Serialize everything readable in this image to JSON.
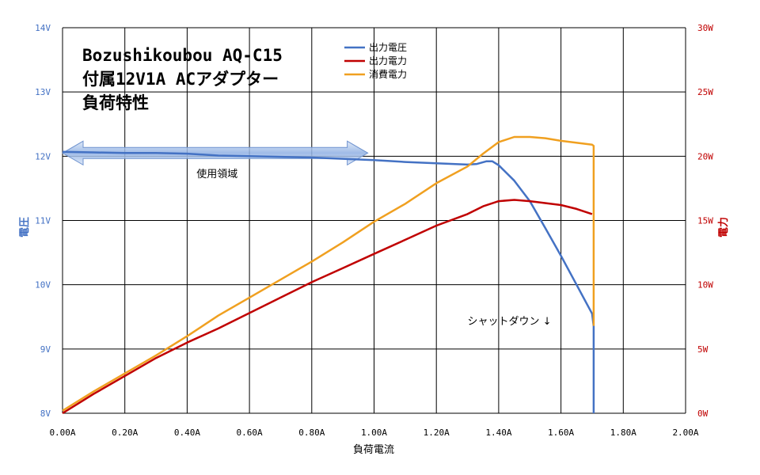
{
  "chart_data": {
    "type": "line",
    "title": [
      "Bozushikoubou AQ-C15",
      "付属12V1A ACアダプター",
      "負荷特性"
    ],
    "xlabel": "負荷電流",
    "ylabel_left": "電圧",
    "ylabel_right": "電力",
    "xlim": [
      0,
      2.0
    ],
    "ylim_left": [
      8,
      14
    ],
    "ylim_right": [
      0,
      30
    ],
    "grid": true,
    "legend_position": "top-center",
    "x_ticks": [
      "0.00A",
      "0.20A",
      "0.40A",
      "0.60A",
      "0.80A",
      "1.00A",
      "1.20A",
      "1.40A",
      "1.60A",
      "1.80A",
      "2.00A"
    ],
    "y_ticks_left": [
      "8V",
      "9V",
      "10V",
      "11V",
      "12V",
      "13V",
      "14V"
    ],
    "y_ticks_right": [
      "0W",
      "5W",
      "10W",
      "15W",
      "20W",
      "25W",
      "30W"
    ],
    "colors": {
      "left_axis": "#4472c4",
      "right_axis": "#c00000"
    },
    "series": [
      {
        "name": "出力電圧",
        "axis": "left",
        "color": "#4472c4",
        "x": [
          0.0,
          0.1,
          0.2,
          0.3,
          0.4,
          0.5,
          0.6,
          0.7,
          0.8,
          0.9,
          1.0,
          1.1,
          1.2,
          1.3,
          1.33,
          1.36,
          1.38,
          1.4,
          1.45,
          1.5,
          1.55,
          1.6,
          1.65,
          1.7,
          1.705,
          1.705
        ],
        "y": [
          12.07,
          12.06,
          12.05,
          12.05,
          12.04,
          12.01,
          12.0,
          11.99,
          11.98,
          11.96,
          11.94,
          11.91,
          11.89,
          11.87,
          11.88,
          11.92,
          11.92,
          11.86,
          11.62,
          11.3,
          10.88,
          10.45,
          10.0,
          9.55,
          9.35,
          8.0
        ]
      },
      {
        "name": "出力電力",
        "axis": "right",
        "color": "#c00000",
        "x": [
          0.0,
          0.1,
          0.2,
          0.3,
          0.4,
          0.5,
          0.6,
          0.7,
          0.8,
          0.9,
          1.0,
          1.1,
          1.2,
          1.3,
          1.35,
          1.4,
          1.45,
          1.5,
          1.6,
          1.65,
          1.7
        ],
        "y": [
          0.0,
          1.5,
          2.9,
          4.3,
          5.5,
          6.6,
          7.8,
          9.0,
          10.2,
          11.3,
          12.4,
          13.5,
          14.6,
          15.5,
          16.1,
          16.5,
          16.6,
          16.5,
          16.2,
          15.9,
          15.5
        ]
      },
      {
        "name": "消費電力",
        "axis": "right",
        "color": "#f0a020",
        "x": [
          0.0,
          0.1,
          0.2,
          0.3,
          0.4,
          0.5,
          0.6,
          0.7,
          0.8,
          0.9,
          1.0,
          1.1,
          1.2,
          1.3,
          1.35,
          1.4,
          1.45,
          1.5,
          1.55,
          1.6,
          1.7,
          1.705,
          1.705
        ],
        "y": [
          0.2,
          1.7,
          3.1,
          4.5,
          6.0,
          7.6,
          9.0,
          10.4,
          11.8,
          13.3,
          14.9,
          16.3,
          17.9,
          19.2,
          20.2,
          21.1,
          21.5,
          21.5,
          21.4,
          21.2,
          20.9,
          20.8,
          6.8
        ]
      }
    ],
    "annotations": [
      {
        "text": "使用領域",
        "x": 0.43,
        "y_left": 11.67
      },
      {
        "text": "シャットダウン  ↓",
        "x": 1.3,
        "y_left": 9.38
      }
    ],
    "range_arrow": {
      "label": "使用領域",
      "x_start": 0.0,
      "x_end": 0.98,
      "y_left": 12.05
    }
  }
}
